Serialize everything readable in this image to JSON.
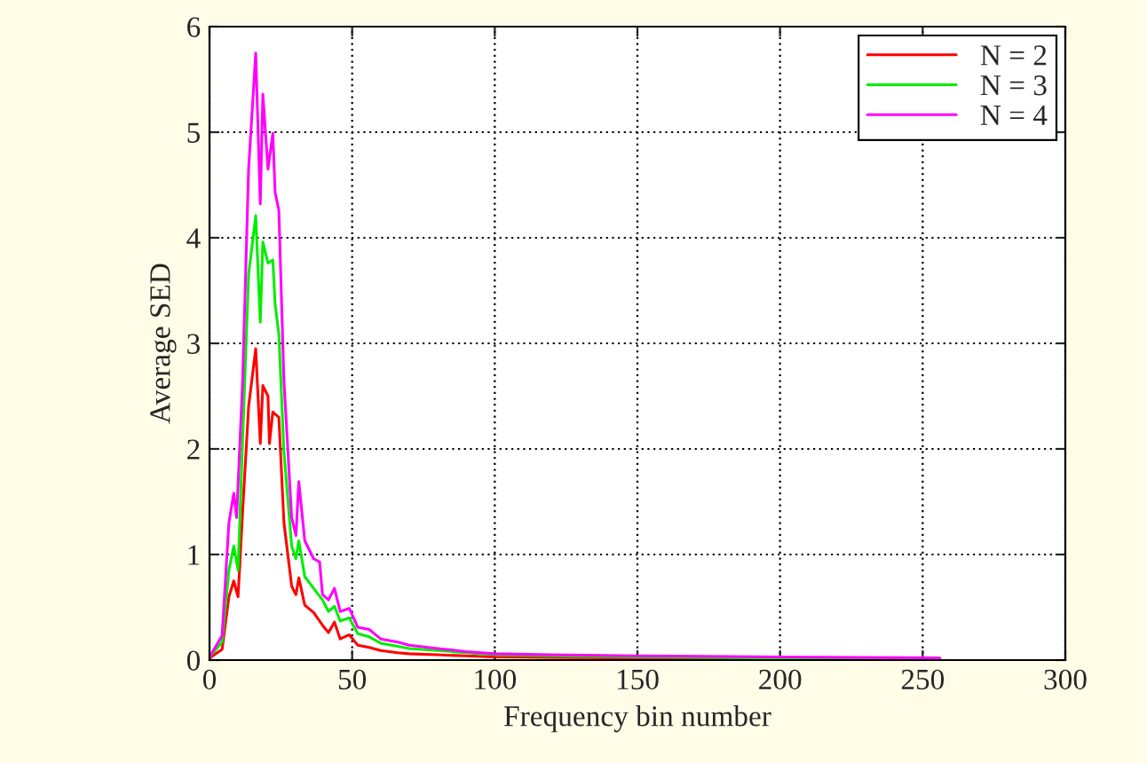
{
  "chart_data": {
    "type": "line",
    "xlabel": "Frequency bin number",
    "ylabel": "Average SED",
    "xlim": [
      0,
      300
    ],
    "ylim": [
      0,
      6
    ],
    "xticks": [
      0,
      50,
      100,
      150,
      200,
      250,
      300
    ],
    "yticks": [
      0,
      1,
      2,
      3,
      4,
      5,
      6
    ],
    "grid": true,
    "legend": "top right",
    "line_style": "solid",
    "marker": "none",
    "series": [
      {
        "name": "N = 2",
        "color": "#ff0000",
        "x": [
          0,
          4.4,
          6.8,
          8.5,
          10,
          11.6,
          13.7,
          16.2,
          17.8,
          18.7,
          20.5,
          21,
          22.2,
          24.3,
          26.1,
          28.8,
          30.3,
          31.3,
          33.4,
          36.5,
          39.6,
          41.7,
          43.8,
          45.8,
          49,
          52,
          56,
          60,
          66,
          70,
          80,
          90,
          100,
          150,
          200,
          256
        ],
        "values": [
          0.02,
          0.1,
          0.6,
          0.75,
          0.6,
          1.4,
          2.4,
          2.95,
          2.05,
          2.6,
          2.5,
          2.05,
          2.35,
          2.3,
          1.3,
          0.7,
          0.62,
          0.78,
          0.52,
          0.45,
          0.33,
          0.26,
          0.36,
          0.2,
          0.24,
          0.14,
          0.12,
          0.09,
          0.07,
          0.06,
          0.05,
          0.04,
          0.03,
          0.02,
          0.01,
          0.01
        ]
      },
      {
        "name": "N = 3",
        "color": "#00ee00",
        "x": [
          0,
          4.4,
          6.8,
          8.5,
          10,
          11.6,
          13.7,
          16.2,
          17.8,
          18.7,
          20.5,
          22.2,
          23,
          24.3,
          26.1,
          28.8,
          30.3,
          31.3,
          33.4,
          36.5,
          39.6,
          41.7,
          43.8,
          45.8,
          49,
          52,
          56,
          60,
          66,
          70,
          80,
          90,
          100,
          120,
          150,
          200,
          256
        ],
        "values": [
          0.03,
          0.17,
          0.85,
          1.08,
          0.85,
          2.08,
          3.65,
          4.21,
          3.2,
          3.96,
          3.76,
          3.79,
          3.37,
          3.09,
          1.97,
          1.08,
          0.96,
          1.13,
          0.79,
          0.68,
          0.57,
          0.46,
          0.51,
          0.37,
          0.4,
          0.25,
          0.22,
          0.16,
          0.13,
          0.11,
          0.09,
          0.07,
          0.05,
          0.04,
          0.03,
          0.02,
          0.01
        ]
      },
      {
        "name": "N = 4",
        "color": "#ff00ff",
        "x": [
          0,
          4.4,
          6.8,
          8.5,
          9.5,
          11.6,
          13.7,
          16.2,
          17.8,
          18.7,
          20.5,
          22.2,
          23,
          24.3,
          26.1,
          28.8,
          30.3,
          31.3,
          33.4,
          36.5,
          38.6,
          39.6,
          41.7,
          43.8,
          45.8,
          49,
          52,
          56,
          60,
          66,
          70,
          80,
          90,
          100,
          120,
          150,
          200,
          256
        ],
        "values": [
          0.03,
          0.23,
          1.3,
          1.58,
          1.35,
          2.64,
          4.65,
          5.75,
          4.32,
          5.36,
          4.65,
          4.99,
          4.43,
          4.26,
          2.64,
          1.35,
          1.18,
          1.69,
          1.13,
          0.96,
          0.93,
          0.62,
          0.57,
          0.68,
          0.46,
          0.49,
          0.31,
          0.29,
          0.2,
          0.17,
          0.14,
          0.11,
          0.08,
          0.06,
          0.05,
          0.04,
          0.03,
          0.02
        ]
      }
    ]
  }
}
